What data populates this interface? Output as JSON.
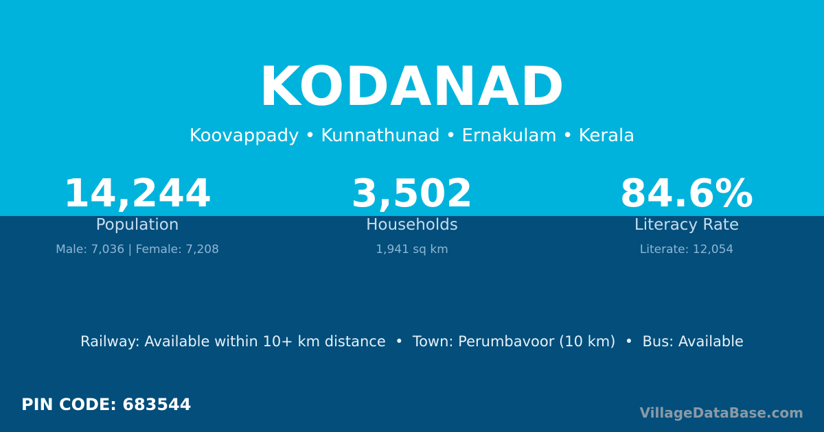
{
  "title": "KODANAD",
  "subtitle": "Koovappady • Kunnathunad • Ernakulam • Kerala",
  "stats": [
    {
      "value": "14,244",
      "label": "Population",
      "sub": "Male: 7,036 | Female: 7,208"
    },
    {
      "value": "3,502",
      "label": "Households",
      "sub": "1,941 sq km"
    },
    {
      "value": "84.6%",
      "label": "Literacy Rate",
      "sub": "Literate: 12,054"
    }
  ],
  "info": "Railway: Available within 10+ km distance  •  Town: Perumbavoor (10 km)  •  Bus: Available",
  "pin_code": "PIN CODE: 683544",
  "brand": "VillageDataBase.com",
  "colors": {
    "top": "#00b3dc",
    "bottom": "#034e7b"
  }
}
